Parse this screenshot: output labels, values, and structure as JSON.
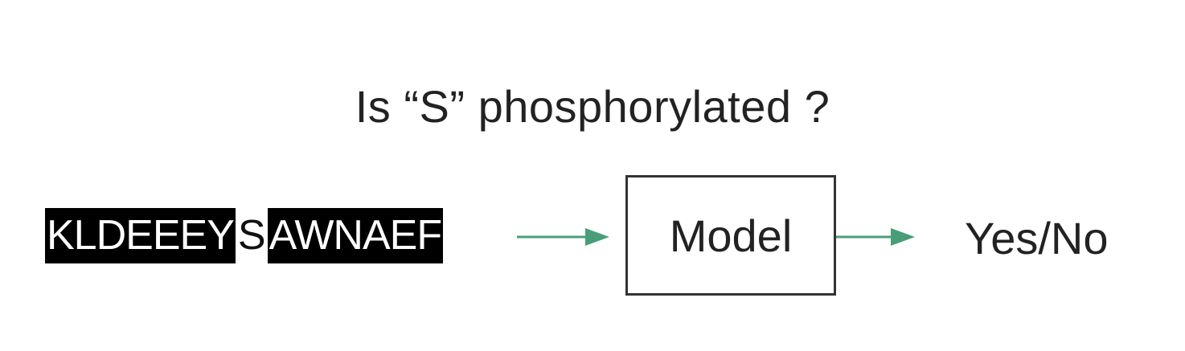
{
  "question": "Is “S” phosphorylated ?",
  "sequence": {
    "left": "KLDEEEY",
    "target": "S",
    "right": "AWNAEF"
  },
  "model_label": "Model",
  "output_label": "Yes/No",
  "colors": {
    "arrow": "#4a9e77",
    "sequence_highlight": "#000000",
    "box_border": "#333333"
  }
}
